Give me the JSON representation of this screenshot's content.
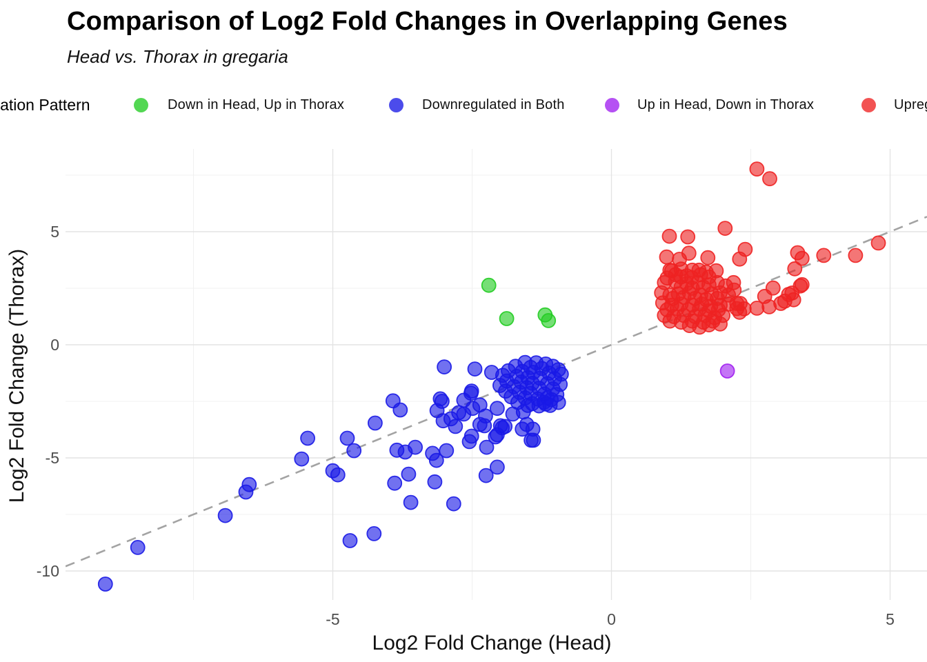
{
  "header": {
    "title": "Comparison of Log2 Fold Changes in Overlapping Genes",
    "subtitle": "Head vs. Thorax in gregaria"
  },
  "legend": {
    "title": "Regulation Pattern",
    "items": [
      {
        "label": "Down in Head, Up in Thorax",
        "color": "#22CC22"
      },
      {
        "label": "Downregulated in Both",
        "color": "#1A1AE6"
      },
      {
        "label": "Up in Head, Down in Thorax",
        "color": "#A020F0"
      },
      {
        "label": "Upregulated in Both",
        "color": "#EE2222"
      }
    ]
  },
  "chart_data": {
    "type": "scatter",
    "title": "Comparison of Log2 Fold Changes in Overlapping Genes",
    "subtitle": "Head vs. Thorax in gregaria",
    "xlabel": "Log2 Fold Change (Head)",
    "ylabel": "Log2 Fold Change (Thorax)",
    "legend_title": "Regulation Pattern",
    "legend_position": "top",
    "grid": "on",
    "x_ticks": [
      -5,
      0,
      5
    ],
    "y_ticks": [
      5,
      0,
      -5,
      -10
    ],
    "xlim": [
      -9.8,
      5.7
    ],
    "ylim": [
      -11.6,
      8.7
    ],
    "reference_line": {
      "type": "identity y=x",
      "style": "dashed",
      "color": "#A3A3A3"
    },
    "series": [
      {
        "name": "Down in Head, Up in Thorax",
        "color": "#22CC22",
        "points": [
          [
            -2.2,
            2.63
          ],
          [
            -1.88,
            1.16
          ],
          [
            -1.19,
            1.32
          ],
          [
            -1.13,
            1.07
          ]
        ]
      },
      {
        "name": "Downregulated in Both",
        "color": "#1A1AE6",
        "points": [
          [
            -9.08,
            -10.58
          ],
          [
            -8.5,
            -8.96
          ],
          [
            -6.93,
            -7.55
          ],
          [
            -6.56,
            -6.51
          ],
          [
            -6.5,
            -6.18
          ],
          [
            -5.56,
            -5.05
          ],
          [
            -5.45,
            -4.13
          ],
          [
            -5.0,
            -5.57
          ],
          [
            -4.91,
            -5.75
          ],
          [
            -4.74,
            -4.13
          ],
          [
            -4.62,
            -4.68
          ],
          [
            -4.69,
            -8.66
          ],
          [
            -4.26,
            -8.35
          ],
          [
            -4.24,
            -3.46
          ],
          [
            -3.92,
            -2.48
          ],
          [
            -3.79,
            -2.88
          ],
          [
            -3.85,
            -4.66
          ],
          [
            -3.7,
            -4.74
          ],
          [
            -3.52,
            -4.53
          ],
          [
            -3.89,
            -6.12
          ],
          [
            -3.64,
            -5.72
          ],
          [
            -3.6,
            -6.97
          ],
          [
            -3.21,
            -4.8
          ],
          [
            -3.14,
            -5.11
          ],
          [
            -2.96,
            -4.68
          ],
          [
            -3.17,
            -6.06
          ],
          [
            -2.83,
            -7.03
          ],
          [
            -3.07,
            -2.39
          ],
          [
            -3.13,
            -2.91
          ],
          [
            -3.02,
            -3.36
          ],
          [
            -2.88,
            -3.27
          ],
          [
            -2.8,
            -3.61
          ],
          [
            -2.74,
            -3.0
          ],
          [
            -2.65,
            -3.06
          ],
          [
            -2.52,
            -2.14
          ],
          [
            -2.49,
            -2.81
          ],
          [
            -2.51,
            -4.04
          ],
          [
            -2.55,
            -4.28
          ],
          [
            -2.26,
            -3.15
          ],
          [
            -2.28,
            -3.58
          ],
          [
            -2.24,
            -4.53
          ],
          [
            -2.05,
            -5.41
          ],
          [
            -2.25,
            -5.78
          ],
          [
            -2.08,
            -4.07
          ],
          [
            -1.96,
            -3.67
          ],
          [
            -1.6,
            -3.73
          ],
          [
            -1.41,
            -3.73
          ],
          [
            -1.4,
            -4.22
          ],
          [
            -3.0,
            -0.98
          ],
          [
            -3.04,
            -2.5
          ],
          [
            -2.65,
            -2.45
          ],
          [
            -2.51,
            -2.05
          ],
          [
            -2.45,
            -1.07
          ],
          [
            -2.15,
            -1.22
          ],
          [
            -2.36,
            -2.66
          ],
          [
            -2.05,
            -2.81
          ],
          [
            -1.77,
            -3.06
          ],
          [
            -1.58,
            -2.97
          ],
          [
            -1.52,
            -3.52
          ],
          [
            -1.99,
            -3.58
          ],
          [
            -2.36,
            -3.52
          ],
          [
            -1.44,
            -4.22
          ],
          [
            -1.21,
            -2.54
          ],
          [
            -1.15,
            -2.35
          ],
          [
            -2.05,
            -3.98
          ],
          [
            -1.91,
            -3.61
          ],
          [
            -1.55,
            -0.78
          ],
          [
            -1.35,
            -0.8
          ],
          [
            -1.18,
            -0.85
          ],
          [
            -1.05,
            -0.95
          ],
          [
            -1.72,
            -0.95
          ],
          [
            -1.45,
            -1.0
          ],
          [
            -1.25,
            -1.05
          ],
          [
            -0.95,
            -1.1
          ],
          [
            -1.85,
            -1.15
          ],
          [
            -1.6,
            -1.18
          ],
          [
            -1.4,
            -1.22
          ],
          [
            -1.12,
            -1.25
          ],
          [
            -0.9,
            -1.3
          ],
          [
            -1.95,
            -1.35
          ],
          [
            -1.7,
            -1.4
          ],
          [
            -1.5,
            -1.45
          ],
          [
            -1.28,
            -1.48
          ],
          [
            -1.02,
            -1.5
          ],
          [
            -1.88,
            -1.6
          ],
          [
            -1.62,
            -1.65
          ],
          [
            -1.42,
            -1.7
          ],
          [
            -1.15,
            -1.72
          ],
          [
            -0.92,
            -1.75
          ],
          [
            -2.0,
            -1.8
          ],
          [
            -1.75,
            -1.85
          ],
          [
            -1.52,
            -1.9
          ],
          [
            -1.3,
            -1.92
          ],
          [
            -1.05,
            -1.95
          ],
          [
            -1.9,
            -2.05
          ],
          [
            -1.65,
            -2.1
          ],
          [
            -1.45,
            -2.15
          ],
          [
            -1.2,
            -2.18
          ],
          [
            -0.98,
            -2.2
          ],
          [
            -1.8,
            -2.3
          ],
          [
            -1.55,
            -2.35
          ],
          [
            -1.32,
            -2.4
          ],
          [
            -1.08,
            -2.42
          ],
          [
            -1.68,
            -2.55
          ],
          [
            -1.42,
            -2.6
          ],
          [
            -1.18,
            -2.62
          ],
          [
            -0.95,
            -2.55
          ],
          [
            -1.3,
            -2.7
          ],
          [
            -1.1,
            -2.68
          ],
          [
            -1.5,
            -2.68
          ]
        ]
      },
      {
        "name": "Up in Head, Down in Thorax",
        "color": "#A020F0",
        "points": [
          [
            2.08,
            -1.16
          ]
        ]
      },
      {
        "name": "Upregulated in Both",
        "color": "#EE2222",
        "points": [
          [
            2.61,
            7.77
          ],
          [
            2.84,
            7.34
          ],
          [
            2.04,
            5.15
          ],
          [
            1.04,
            4.8
          ],
          [
            1.37,
            4.77
          ],
          [
            0.99,
            3.88
          ],
          [
            1.22,
            3.78
          ],
          [
            1.39,
            4.05
          ],
          [
            1.73,
            3.85
          ],
          [
            2.4,
            4.22
          ],
          [
            2.3,
            3.79
          ],
          [
            3.34,
            4.07
          ],
          [
            3.42,
            3.82
          ],
          [
            3.29,
            3.36
          ],
          [
            3.81,
            3.95
          ],
          [
            4.38,
            3.95
          ],
          [
            4.79,
            4.5
          ],
          [
            3.42,
            2.66
          ],
          [
            3.24,
            2.29
          ],
          [
            3.11,
            1.93
          ],
          [
            2.9,
            2.51
          ],
          [
            2.75,
            2.14
          ],
          [
            3.04,
            1.83
          ],
          [
            3.18,
            2.23
          ],
          [
            3.39,
            2.6
          ],
          [
            2.83,
            1.68
          ],
          [
            2.61,
            1.62
          ],
          [
            2.38,
            1.59
          ],
          [
            2.31,
            1.83
          ],
          [
            3.27,
            1.99
          ],
          [
            1.08,
            3.27
          ],
          [
            1.57,
            3.3
          ],
          [
            1.7,
            3.21
          ],
          [
            1.88,
            3.27
          ],
          [
            1.25,
            3.0
          ],
          [
            1.44,
            2.97
          ],
          [
            2.19,
            2.75
          ],
          [
            2.25,
            1.83
          ],
          [
            2.3,
            1.44
          ],
          [
            1.05,
            3.3
          ],
          [
            1.25,
            3.35
          ],
          [
            1.45,
            3.3
          ],
          [
            1.15,
            3.1
          ],
          [
            1.35,
            3.05
          ],
          [
            1.6,
            3.1
          ],
          [
            1.0,
            2.95
          ],
          [
            1.75,
            3.0
          ],
          [
            0.95,
            2.75
          ],
          [
            1.15,
            2.8
          ],
          [
            1.35,
            2.7
          ],
          [
            1.55,
            2.75
          ],
          [
            1.75,
            2.65
          ],
          [
            1.9,
            2.75
          ],
          [
            1.25,
            2.55
          ],
          [
            1.45,
            2.5
          ],
          [
            1.65,
            2.55
          ],
          [
            2.05,
            2.6
          ],
          [
            0.9,
            2.3
          ],
          [
            1.05,
            2.2
          ],
          [
            1.2,
            2.25
          ],
          [
            1.4,
            2.3
          ],
          [
            1.6,
            2.2
          ],
          [
            1.8,
            2.25
          ],
          [
            1.95,
            2.3
          ],
          [
            2.1,
            2.2
          ],
          [
            1.1,
            2.05
          ],
          [
            1.3,
            2.1
          ],
          [
            1.5,
            2.05
          ],
          [
            1.7,
            2.0
          ],
          [
            1.9,
            2.05
          ],
          [
            2.2,
            2.42
          ],
          [
            0.92,
            1.85
          ],
          [
            1.08,
            1.75
          ],
          [
            1.25,
            1.8
          ],
          [
            1.45,
            1.75
          ],
          [
            1.62,
            1.8
          ],
          [
            1.78,
            1.7
          ],
          [
            1.95,
            1.75
          ],
          [
            2.1,
            1.8
          ],
          [
            1.0,
            1.55
          ],
          [
            1.18,
            1.6
          ],
          [
            1.38,
            1.55
          ],
          [
            1.58,
            1.6
          ],
          [
            1.75,
            1.5
          ],
          [
            1.92,
            1.55
          ],
          [
            2.25,
            1.6
          ],
          [
            0.95,
            1.3
          ],
          [
            1.12,
            1.25
          ],
          [
            1.3,
            1.3
          ],
          [
            1.5,
            1.25
          ],
          [
            1.68,
            1.3
          ],
          [
            1.85,
            1.2
          ],
          [
            2.0,
            1.3
          ],
          [
            1.05,
            1.05
          ],
          [
            1.25,
            1.0
          ],
          [
            1.45,
            1.05
          ],
          [
            1.65,
            1.0
          ],
          [
            1.82,
            1.05
          ],
          [
            1.4,
            0.85
          ],
          [
            1.58,
            0.78
          ],
          [
            1.75,
            0.88
          ],
          [
            1.95,
            0.92
          ]
        ]
      }
    ]
  }
}
